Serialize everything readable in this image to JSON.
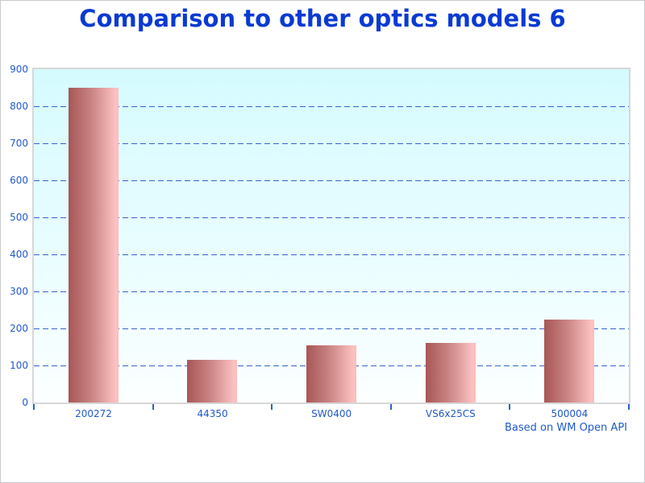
{
  "chart_data": {
    "type": "bar",
    "title": "Comparison to other optics models 6",
    "categories": [
      "200272",
      "44350",
      "SW0400",
      "VS6x25CS",
      "500004"
    ],
    "values": [
      850,
      115,
      155,
      160,
      225
    ],
    "ylim": [
      0,
      900
    ],
    "ytick_step": 100,
    "ytick_labels": [
      "0",
      "100",
      "200",
      "300",
      "400",
      "500",
      "600",
      "700",
      "800",
      "900"
    ],
    "xlabel": "",
    "ylabel": "",
    "footer": "Based on WM Open API",
    "grid": "horizontal-dashed",
    "legend": "none",
    "colors": {
      "title_text": "#0a3ad3",
      "axis_label_text": "#2159c7",
      "gridline": "#3465ce",
      "tick_mark": "#2a64c9",
      "bar_gradient_left": "#a85656",
      "bar_gradient_right": "#fdc2c2",
      "plot_bg_top": "#d5fbff",
      "plot_bg_bottom": "#fcffff",
      "plot_border": "#d7d7d7"
    }
  }
}
